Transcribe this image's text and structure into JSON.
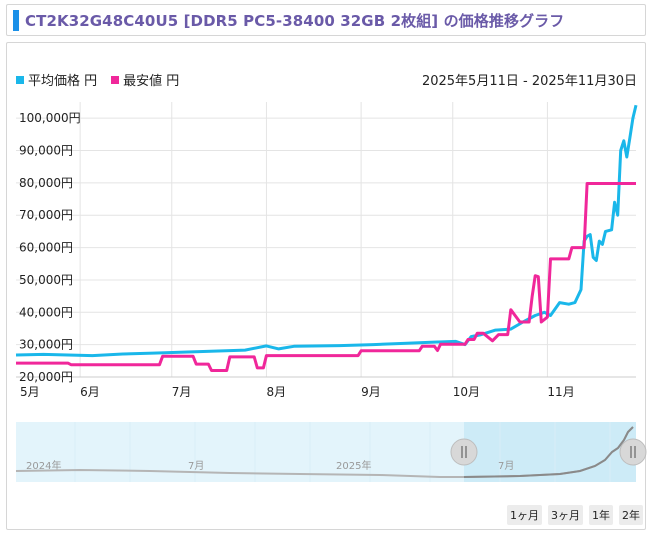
{
  "title": "CT2K32G48C40U5 [DDR5 PC5-38400 32GB 2枚組] の価格推移グラフ",
  "legend": {
    "avg_label": "平均価格 円",
    "min_label": "最安値 円"
  },
  "date_range": "2025年5月11日 - 2025年11月30日",
  "navigator": {
    "labels": [
      "2024年",
      "7月",
      "2025年",
      "7月"
    ]
  },
  "range_buttons": [
    "1ヶ月",
    "3ヶ月",
    "1年",
    "2年"
  ],
  "colors": {
    "avg": "#1ab7ea",
    "min": "#f0279a",
    "nav_fill": "#e3f4fb",
    "nav_selected": "#cdebf7"
  },
  "chart_data": {
    "type": "line",
    "x_start": "2025-05-11",
    "x_end": "2025-11-30",
    "xtick_labels": [
      "5月",
      "6月",
      "7月",
      "8月",
      "9月",
      "10月",
      "11月"
    ],
    "xtick_dates": [
      "2025-05-01",
      "2025-06-01",
      "2025-07-01",
      "2025-08-01",
      "2025-09-01",
      "2025-10-01",
      "2025-11-01"
    ],
    "ytick_labels": [
      "20,000円",
      "30,000円",
      "40,000円",
      "50,000円",
      "60,000円",
      "70,000円",
      "80,000円",
      "90,000円",
      "100,000円"
    ],
    "ylim": [
      20000,
      105000
    ],
    "grid": true,
    "legend_position": "top-left",
    "series": [
      {
        "name": "平均価格 円",
        "points": [
          [
            "2025-05-11",
            26800
          ],
          [
            "2025-05-20",
            27000
          ],
          [
            "2025-05-28",
            26800
          ],
          [
            "2025-06-05",
            26600
          ],
          [
            "2025-06-15",
            27100
          ],
          [
            "2025-06-25",
            27400
          ],
          [
            "2025-07-05",
            27700
          ],
          [
            "2025-07-15",
            28000
          ],
          [
            "2025-07-25",
            28300
          ],
          [
            "2025-08-01",
            29600
          ],
          [
            "2025-08-05",
            28700
          ],
          [
            "2025-08-10",
            29500
          ],
          [
            "2025-08-25",
            29700
          ],
          [
            "2025-09-05",
            30000
          ],
          [
            "2025-09-15",
            30400
          ],
          [
            "2025-09-25",
            30800
          ],
          [
            "2025-10-02",
            31000
          ],
          [
            "2025-10-05",
            30000
          ],
          [
            "2025-10-07",
            32500
          ],
          [
            "2025-10-10",
            33000
          ],
          [
            "2025-10-15",
            34500
          ],
          [
            "2025-10-20",
            34800
          ],
          [
            "2025-10-24",
            37000
          ],
          [
            "2025-10-28",
            39000
          ],
          [
            "2025-10-31",
            40000
          ],
          [
            "2025-11-02",
            39000
          ],
          [
            "2025-11-05",
            43000
          ],
          [
            "2025-11-08",
            42500
          ],
          [
            "2025-11-10",
            43000
          ],
          [
            "2025-11-12",
            47000
          ],
          [
            "2025-11-13",
            62000
          ],
          [
            "2025-11-14",
            63500
          ],
          [
            "2025-11-15",
            64000
          ],
          [
            "2025-11-16",
            57000
          ],
          [
            "2025-11-17",
            56000
          ],
          [
            "2025-11-18",
            62000
          ],
          [
            "2025-11-19",
            61000
          ],
          [
            "2025-11-20",
            65000
          ],
          [
            "2025-11-22",
            65500
          ],
          [
            "2025-11-23",
            74000
          ],
          [
            "2025-11-24",
            70000
          ],
          [
            "2025-11-25",
            90000
          ],
          [
            "2025-11-26",
            93000
          ],
          [
            "2025-11-27",
            88000
          ],
          [
            "2025-11-28",
            94000
          ],
          [
            "2025-11-29",
            100000
          ],
          [
            "2025-11-30",
            104000
          ]
        ]
      },
      {
        "name": "最安値 円",
        "points": [
          [
            "2025-05-11",
            24300
          ],
          [
            "2025-05-28",
            24300
          ],
          [
            "2025-05-29",
            23800
          ],
          [
            "2025-06-20",
            23800
          ],
          [
            "2025-06-27",
            23800
          ],
          [
            "2025-06-28",
            26400
          ],
          [
            "2025-07-08",
            26400
          ],
          [
            "2025-07-09",
            24000
          ],
          [
            "2025-07-13",
            24000
          ],
          [
            "2025-07-14",
            22000
          ],
          [
            "2025-07-19",
            22000
          ],
          [
            "2025-07-20",
            26200
          ],
          [
            "2025-07-28",
            26200
          ],
          [
            "2025-07-29",
            22800
          ],
          [
            "2025-07-31",
            22800
          ],
          [
            "2025-08-01",
            26600
          ],
          [
            "2025-08-31",
            26600
          ],
          [
            "2025-09-01",
            28100
          ],
          [
            "2025-09-20",
            28100
          ],
          [
            "2025-09-21",
            29500
          ],
          [
            "2025-09-25",
            29500
          ],
          [
            "2025-09-26",
            28200
          ],
          [
            "2025-09-27",
            30100
          ],
          [
            "2025-10-05",
            30100
          ],
          [
            "2025-10-06",
            31600
          ],
          [
            "2025-10-08",
            31600
          ],
          [
            "2025-10-09",
            33500
          ],
          [
            "2025-10-11",
            33500
          ],
          [
            "2025-10-14",
            31200
          ],
          [
            "2025-10-16",
            33100
          ],
          [
            "2025-10-19",
            33100
          ],
          [
            "2025-10-20",
            40800
          ],
          [
            "2025-10-23",
            37000
          ],
          [
            "2025-10-26",
            37000
          ],
          [
            "2025-10-27",
            45000
          ],
          [
            "2025-10-28",
            51300
          ],
          [
            "2025-10-29",
            51000
          ],
          [
            "2025-10-30",
            37000
          ],
          [
            "2025-11-01",
            38500
          ],
          [
            "2025-11-02",
            56500
          ],
          [
            "2025-11-08",
            56500
          ],
          [
            "2025-11-09",
            60000
          ],
          [
            "2025-11-13",
            60000
          ],
          [
            "2025-11-14",
            79800
          ],
          [
            "2025-11-30",
            79800
          ]
        ]
      }
    ]
  }
}
